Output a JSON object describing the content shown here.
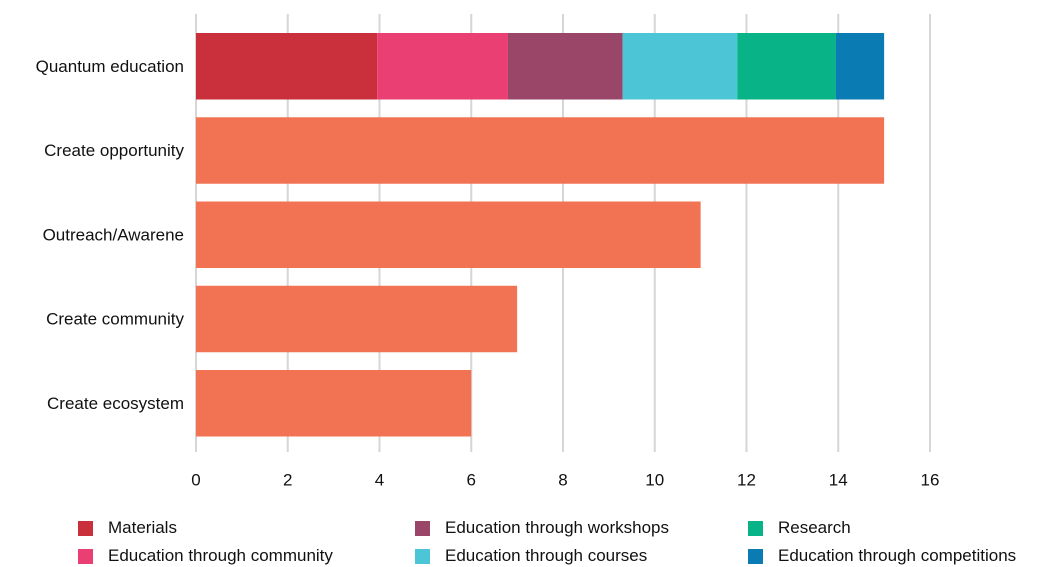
{
  "chart_data": {
    "type": "bar",
    "orientation": "horizontal",
    "categories": [
      "Quantum education",
      "Create opportunity",
      "Outreach/Awarene",
      "Create community",
      "Create ecosystem"
    ],
    "values": [
      15,
      15,
      11,
      7,
      6
    ],
    "bar_color": "#f27353",
    "stacked_bar": {
      "category": "Quantum education",
      "segments": [
        {
          "name": "Materials",
          "value": 3.95,
          "color": "#c9303b"
        },
        {
          "name": "Education through community",
          "value": 2.85,
          "color": "#ea3f72"
        },
        {
          "name": "Education through workshops",
          "value": 2.5,
          "color": "#9a4668"
        },
        {
          "name": "Education through courses",
          "value": 2.5,
          "color": "#4cc6d6"
        },
        {
          "name": "Research",
          "value": 2.15,
          "color": "#08b487"
        },
        {
          "name": "Education through competitions",
          "value": 1.05,
          "color": "#0b7bb4"
        }
      ]
    },
    "xlim": [
      0,
      16
    ],
    "xticks": [
      "0",
      "2",
      "4",
      "6",
      "8",
      "10",
      "12",
      "14",
      "16"
    ],
    "grid": "vertical",
    "legend_position": "bottom"
  }
}
